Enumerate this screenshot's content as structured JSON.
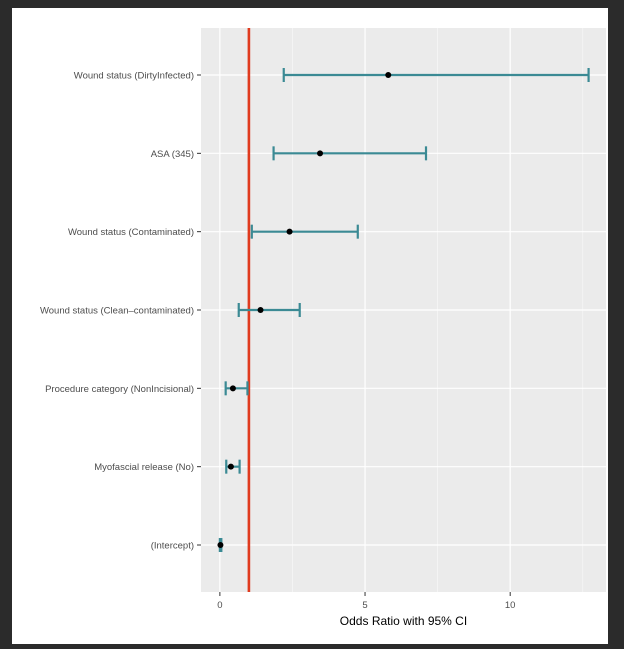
{
  "chart_data": {
    "type": "forest",
    "xlabel": "Odds Ratio with 95% CI",
    "ylabel": "",
    "xlim": [
      -0.65,
      13.3
    ],
    "x_ticks": [
      0,
      5,
      10
    ],
    "x_tick_labels": [
      "0",
      "5",
      "10"
    ],
    "grid": true,
    "categories": [
      "Wound status (DirtyInfected)",
      "ASA (345)",
      "Wound status (Contaminated)",
      "Wound status (Clean–contaminated)",
      "Procedure category (NonIncisional)",
      "Myofascial release (No)",
      "(Intercept)"
    ],
    "series": [
      {
        "estimates": [
          5.8,
          3.45,
          2.4,
          1.4,
          0.45,
          0.38,
          0.02
        ],
        "lower": [
          2.2,
          1.85,
          1.1,
          0.65,
          0.2,
          0.22,
          0.0
        ],
        "upper": [
          12.7,
          7.1,
          4.75,
          2.75,
          0.95,
          0.68,
          0.05
        ]
      }
    ],
    "reference_line": 1,
    "colors": {
      "panel": "#ebebeb",
      "grid": "#ffffff",
      "error_bar": "#3b8a94",
      "point": "#000000",
      "reference_line": "#e03a1e"
    }
  }
}
